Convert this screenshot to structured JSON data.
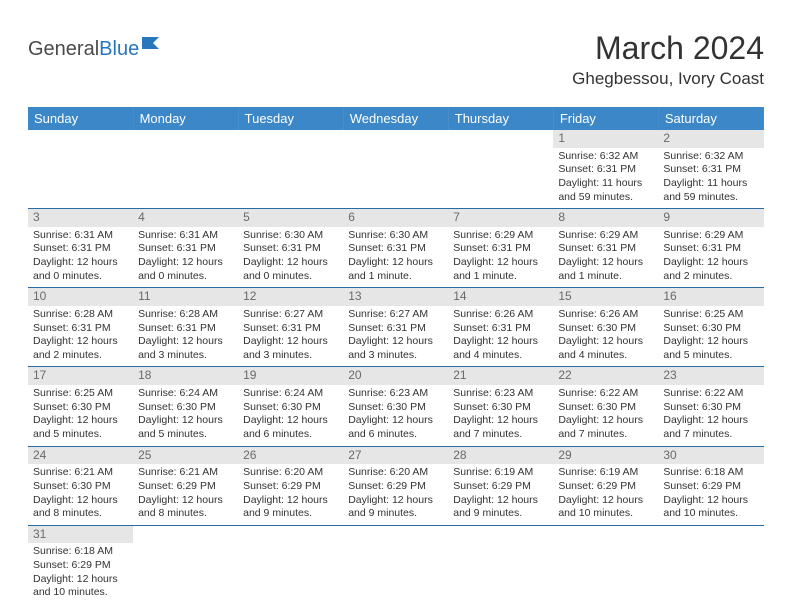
{
  "logo": {
    "textA": "General",
    "textB": "Blue"
  },
  "title": "March 2024",
  "location": "Ghegbessou, Ivory Coast",
  "colors": {
    "header_bg": "#3b87c8",
    "header_fg": "#ffffff",
    "daynum_bg": "#e6e6e6",
    "daynum_fg": "#6a6a6a",
    "row_border": "#2b6aa3",
    "text": "#333333",
    "logo_blue": "#2876bc"
  },
  "weekdays": [
    "Sunday",
    "Monday",
    "Tuesday",
    "Wednesday",
    "Thursday",
    "Friday",
    "Saturday"
  ],
  "weeks": [
    [
      {
        "n": "",
        "sr": "",
        "ss": "",
        "dl1": "",
        "dl2": ""
      },
      {
        "n": "",
        "sr": "",
        "ss": "",
        "dl1": "",
        "dl2": ""
      },
      {
        "n": "",
        "sr": "",
        "ss": "",
        "dl1": "",
        "dl2": ""
      },
      {
        "n": "",
        "sr": "",
        "ss": "",
        "dl1": "",
        "dl2": ""
      },
      {
        "n": "",
        "sr": "",
        "ss": "",
        "dl1": "",
        "dl2": ""
      },
      {
        "n": "1",
        "sr": "Sunrise: 6:32 AM",
        "ss": "Sunset: 6:31 PM",
        "dl1": "Daylight: 11 hours",
        "dl2": "and 59 minutes."
      },
      {
        "n": "2",
        "sr": "Sunrise: 6:32 AM",
        "ss": "Sunset: 6:31 PM",
        "dl1": "Daylight: 11 hours",
        "dl2": "and 59 minutes."
      }
    ],
    [
      {
        "n": "3",
        "sr": "Sunrise: 6:31 AM",
        "ss": "Sunset: 6:31 PM",
        "dl1": "Daylight: 12 hours",
        "dl2": "and 0 minutes."
      },
      {
        "n": "4",
        "sr": "Sunrise: 6:31 AM",
        "ss": "Sunset: 6:31 PM",
        "dl1": "Daylight: 12 hours",
        "dl2": "and 0 minutes."
      },
      {
        "n": "5",
        "sr": "Sunrise: 6:30 AM",
        "ss": "Sunset: 6:31 PM",
        "dl1": "Daylight: 12 hours",
        "dl2": "and 0 minutes."
      },
      {
        "n": "6",
        "sr": "Sunrise: 6:30 AM",
        "ss": "Sunset: 6:31 PM",
        "dl1": "Daylight: 12 hours",
        "dl2": "and 1 minute."
      },
      {
        "n": "7",
        "sr": "Sunrise: 6:29 AM",
        "ss": "Sunset: 6:31 PM",
        "dl1": "Daylight: 12 hours",
        "dl2": "and 1 minute."
      },
      {
        "n": "8",
        "sr": "Sunrise: 6:29 AM",
        "ss": "Sunset: 6:31 PM",
        "dl1": "Daylight: 12 hours",
        "dl2": "and 1 minute."
      },
      {
        "n": "9",
        "sr": "Sunrise: 6:29 AM",
        "ss": "Sunset: 6:31 PM",
        "dl1": "Daylight: 12 hours",
        "dl2": "and 2 minutes."
      }
    ],
    [
      {
        "n": "10",
        "sr": "Sunrise: 6:28 AM",
        "ss": "Sunset: 6:31 PM",
        "dl1": "Daylight: 12 hours",
        "dl2": "and 2 minutes."
      },
      {
        "n": "11",
        "sr": "Sunrise: 6:28 AM",
        "ss": "Sunset: 6:31 PM",
        "dl1": "Daylight: 12 hours",
        "dl2": "and 3 minutes."
      },
      {
        "n": "12",
        "sr": "Sunrise: 6:27 AM",
        "ss": "Sunset: 6:31 PM",
        "dl1": "Daylight: 12 hours",
        "dl2": "and 3 minutes."
      },
      {
        "n": "13",
        "sr": "Sunrise: 6:27 AM",
        "ss": "Sunset: 6:31 PM",
        "dl1": "Daylight: 12 hours",
        "dl2": "and 3 minutes."
      },
      {
        "n": "14",
        "sr": "Sunrise: 6:26 AM",
        "ss": "Sunset: 6:31 PM",
        "dl1": "Daylight: 12 hours",
        "dl2": "and 4 minutes."
      },
      {
        "n": "15",
        "sr": "Sunrise: 6:26 AM",
        "ss": "Sunset: 6:30 PM",
        "dl1": "Daylight: 12 hours",
        "dl2": "and 4 minutes."
      },
      {
        "n": "16",
        "sr": "Sunrise: 6:25 AM",
        "ss": "Sunset: 6:30 PM",
        "dl1": "Daylight: 12 hours",
        "dl2": "and 5 minutes."
      }
    ],
    [
      {
        "n": "17",
        "sr": "Sunrise: 6:25 AM",
        "ss": "Sunset: 6:30 PM",
        "dl1": "Daylight: 12 hours",
        "dl2": "and 5 minutes."
      },
      {
        "n": "18",
        "sr": "Sunrise: 6:24 AM",
        "ss": "Sunset: 6:30 PM",
        "dl1": "Daylight: 12 hours",
        "dl2": "and 5 minutes."
      },
      {
        "n": "19",
        "sr": "Sunrise: 6:24 AM",
        "ss": "Sunset: 6:30 PM",
        "dl1": "Daylight: 12 hours",
        "dl2": "and 6 minutes."
      },
      {
        "n": "20",
        "sr": "Sunrise: 6:23 AM",
        "ss": "Sunset: 6:30 PM",
        "dl1": "Daylight: 12 hours",
        "dl2": "and 6 minutes."
      },
      {
        "n": "21",
        "sr": "Sunrise: 6:23 AM",
        "ss": "Sunset: 6:30 PM",
        "dl1": "Daylight: 12 hours",
        "dl2": "and 7 minutes."
      },
      {
        "n": "22",
        "sr": "Sunrise: 6:22 AM",
        "ss": "Sunset: 6:30 PM",
        "dl1": "Daylight: 12 hours",
        "dl2": "and 7 minutes."
      },
      {
        "n": "23",
        "sr": "Sunrise: 6:22 AM",
        "ss": "Sunset: 6:30 PM",
        "dl1": "Daylight: 12 hours",
        "dl2": "and 7 minutes."
      }
    ],
    [
      {
        "n": "24",
        "sr": "Sunrise: 6:21 AM",
        "ss": "Sunset: 6:30 PM",
        "dl1": "Daylight: 12 hours",
        "dl2": "and 8 minutes."
      },
      {
        "n": "25",
        "sr": "Sunrise: 6:21 AM",
        "ss": "Sunset: 6:29 PM",
        "dl1": "Daylight: 12 hours",
        "dl2": "and 8 minutes."
      },
      {
        "n": "26",
        "sr": "Sunrise: 6:20 AM",
        "ss": "Sunset: 6:29 PM",
        "dl1": "Daylight: 12 hours",
        "dl2": "and 9 minutes."
      },
      {
        "n": "27",
        "sr": "Sunrise: 6:20 AM",
        "ss": "Sunset: 6:29 PM",
        "dl1": "Daylight: 12 hours",
        "dl2": "and 9 minutes."
      },
      {
        "n": "28",
        "sr": "Sunrise: 6:19 AM",
        "ss": "Sunset: 6:29 PM",
        "dl1": "Daylight: 12 hours",
        "dl2": "and 9 minutes."
      },
      {
        "n": "29",
        "sr": "Sunrise: 6:19 AM",
        "ss": "Sunset: 6:29 PM",
        "dl1": "Daylight: 12 hours",
        "dl2": "and 10 minutes."
      },
      {
        "n": "30",
        "sr": "Sunrise: 6:18 AM",
        "ss": "Sunset: 6:29 PM",
        "dl1": "Daylight: 12 hours",
        "dl2": "and 10 minutes."
      }
    ],
    [
      {
        "n": "31",
        "sr": "Sunrise: 6:18 AM",
        "ss": "Sunset: 6:29 PM",
        "dl1": "Daylight: 12 hours",
        "dl2": "and 10 minutes."
      },
      {
        "n": "",
        "sr": "",
        "ss": "",
        "dl1": "",
        "dl2": ""
      },
      {
        "n": "",
        "sr": "",
        "ss": "",
        "dl1": "",
        "dl2": ""
      },
      {
        "n": "",
        "sr": "",
        "ss": "",
        "dl1": "",
        "dl2": ""
      },
      {
        "n": "",
        "sr": "",
        "ss": "",
        "dl1": "",
        "dl2": ""
      },
      {
        "n": "",
        "sr": "",
        "ss": "",
        "dl1": "",
        "dl2": ""
      },
      {
        "n": "",
        "sr": "",
        "ss": "",
        "dl1": "",
        "dl2": ""
      }
    ]
  ]
}
